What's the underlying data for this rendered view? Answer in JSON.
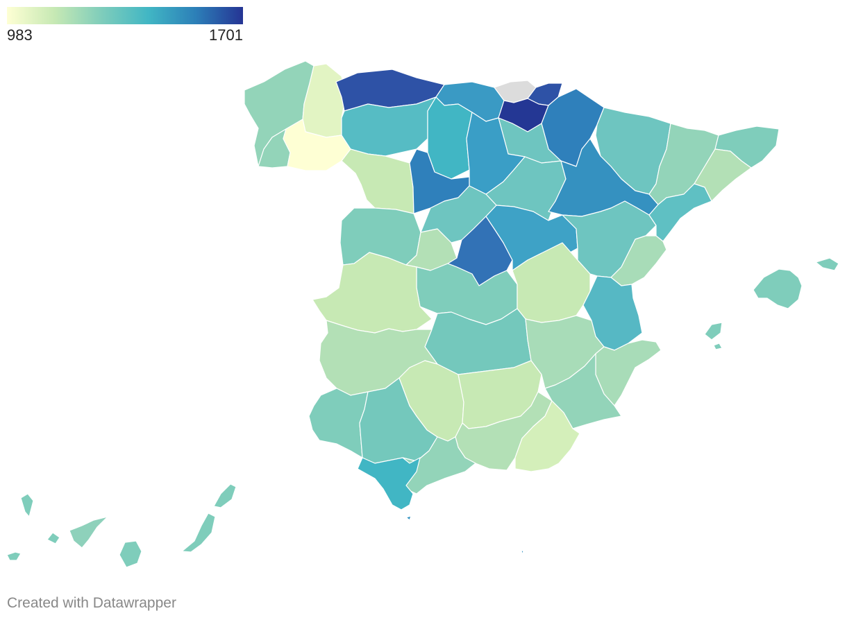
{
  "legend": {
    "min_label": "983",
    "max_label": "1701",
    "color_scale": [
      "#feffd4",
      "#c7e9b4",
      "#7fcdbb",
      "#41b6c4",
      "#2c7fb8",
      "#253494"
    ]
  },
  "map": {
    "no_data_color": "#dcdcdc",
    "stroke_color": "#ffffff"
  },
  "credit": "Created with Datawrapper"
}
